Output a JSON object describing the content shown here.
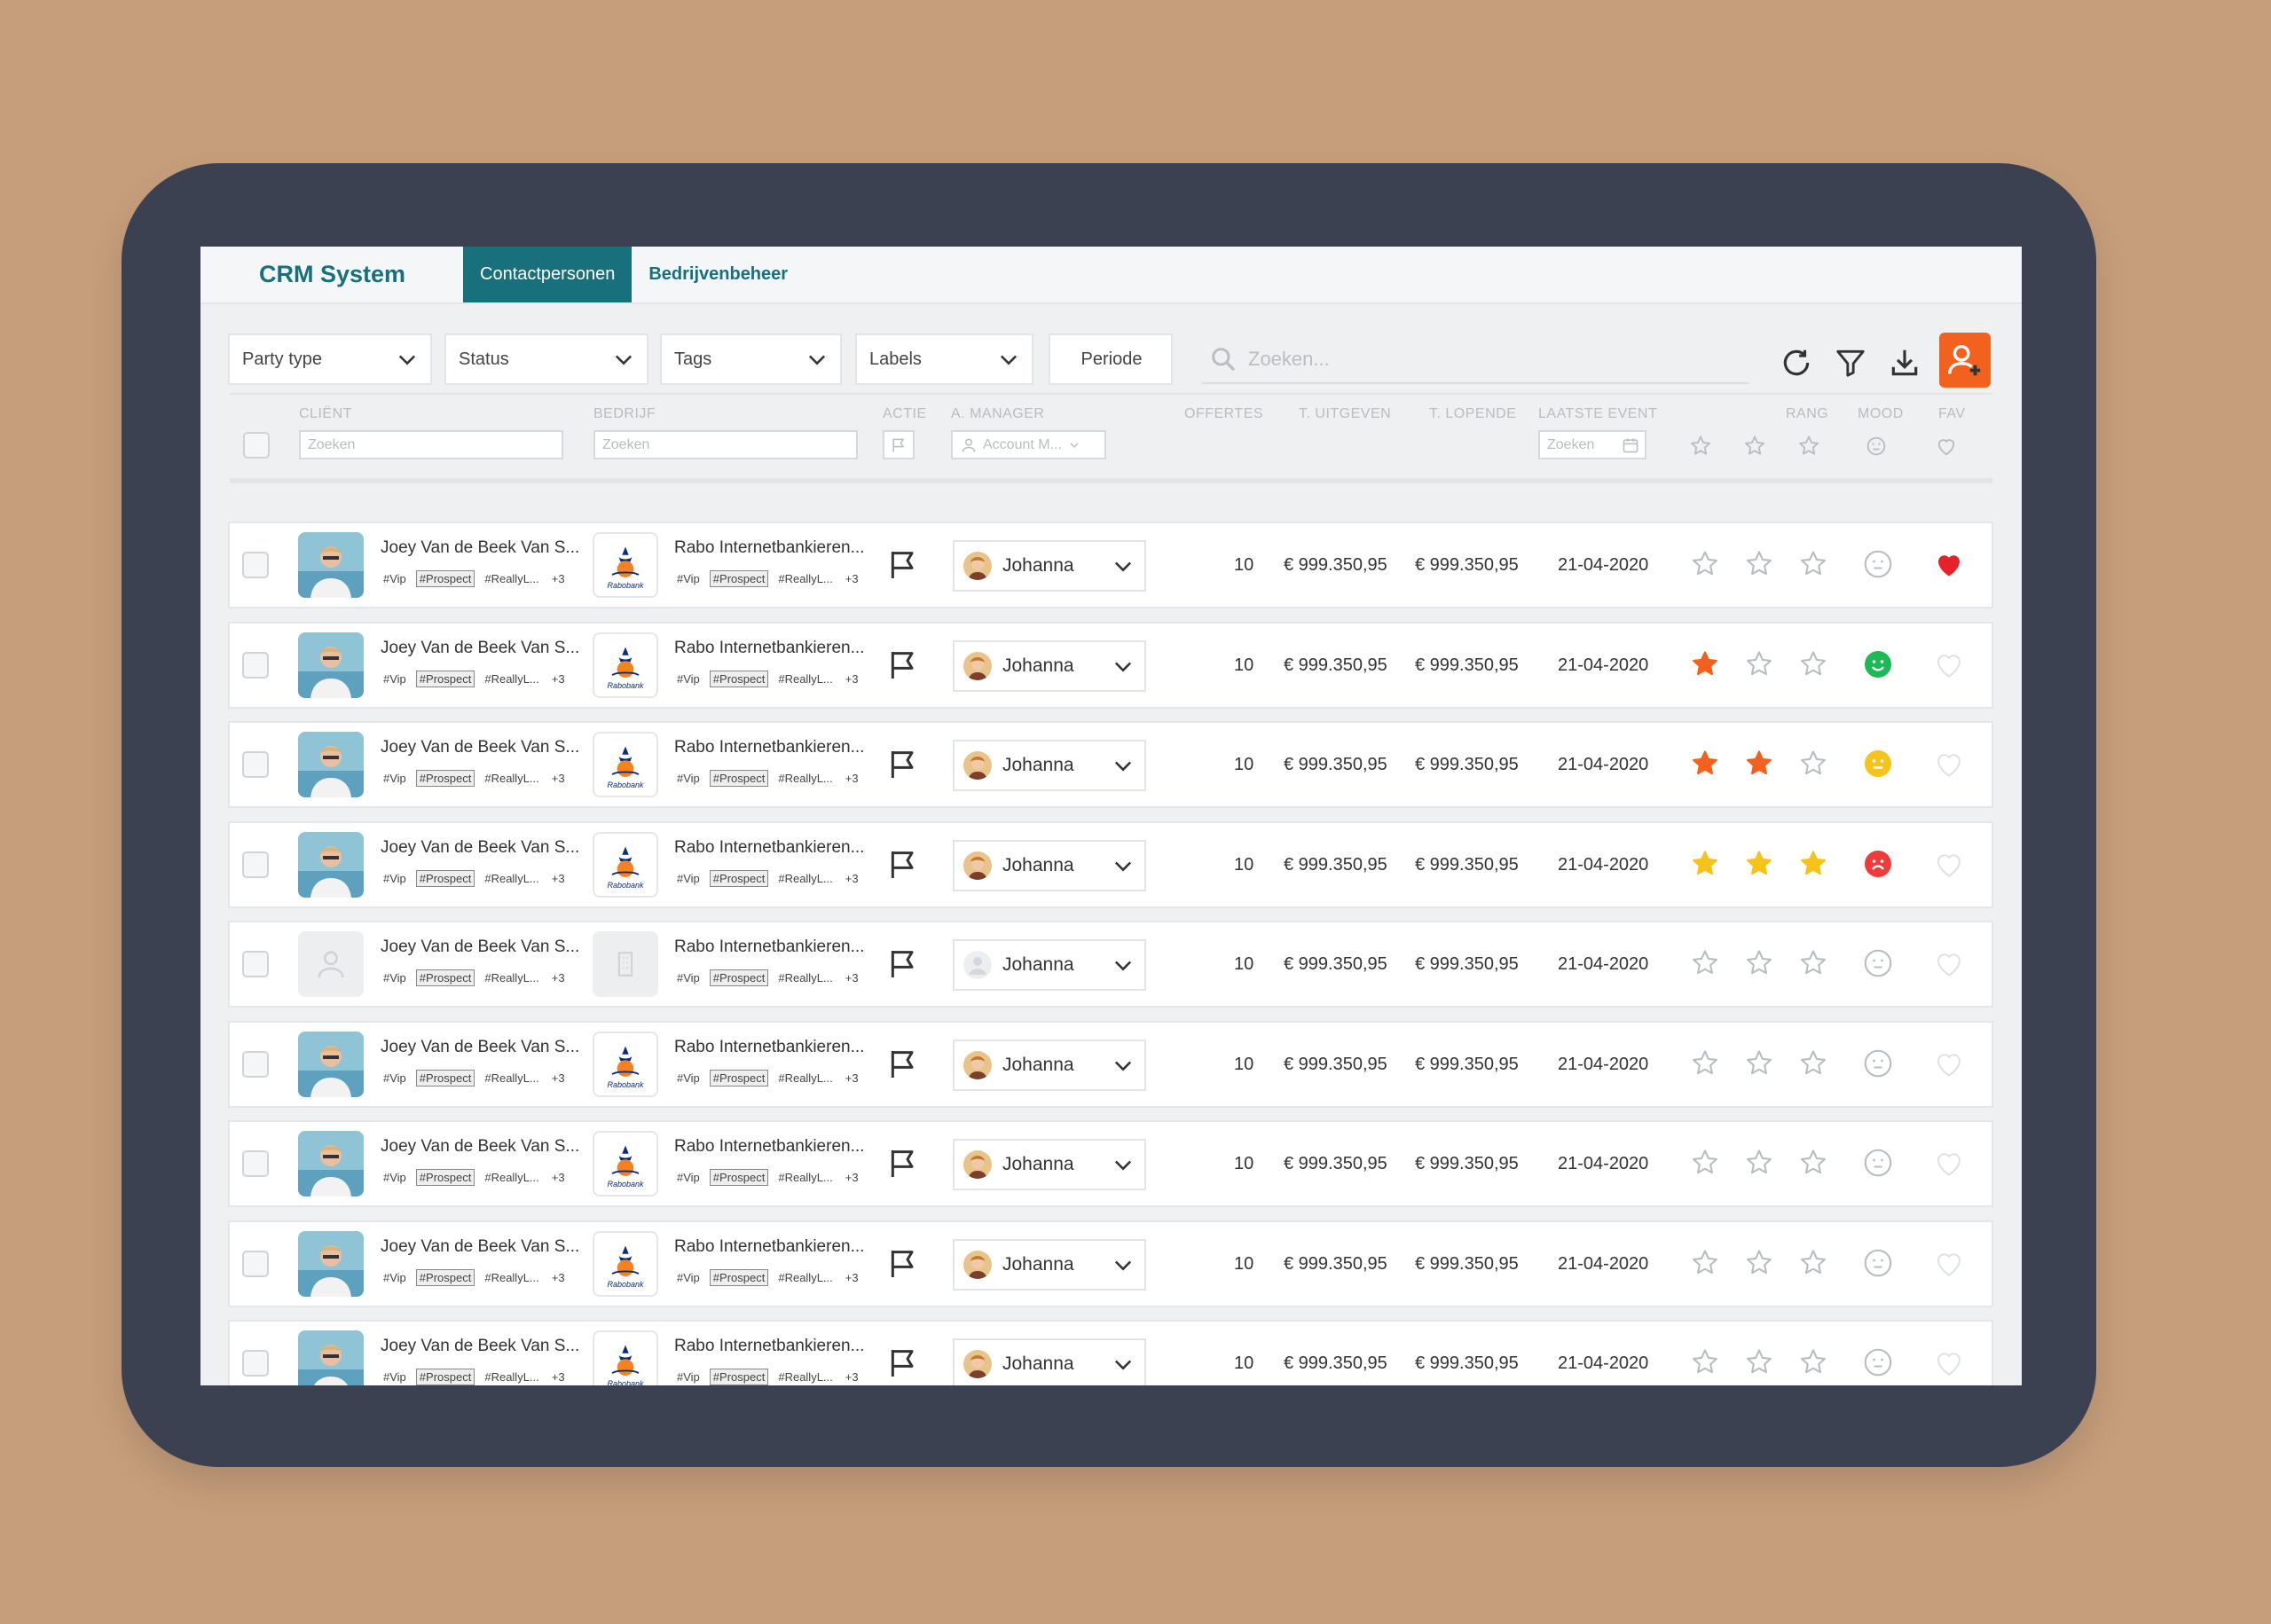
{
  "app": {
    "title": "CRM System"
  },
  "tabs": [
    {
      "label": "Contactpersonen",
      "active": true
    },
    {
      "label": "Bedrijvenbeheer",
      "active": false
    }
  ],
  "filters": {
    "party_type": "Party type",
    "status": "Status",
    "tags": "Tags",
    "labels": "Labels",
    "periode": "Periode",
    "search_placeholder": "Zoeken..."
  },
  "columns": {
    "client": "CLIËNT",
    "bedrijf": "BEDRIJF",
    "actie": "ACTIE",
    "manager": "A. MANAGER",
    "offertes": "OFFERTES",
    "uitgeven": "T. UITGEVEN",
    "lopende": "T. LOPENDE",
    "event": "LAATSTE EVENT",
    "rang": "RANG",
    "mood": "MOOD",
    "fav": "FAV"
  },
  "column_filters": {
    "client_placeholder": "Zoeken",
    "bedrijf_placeholder": "Zoeken",
    "manager_placeholder": "Account M...",
    "event_placeholder": "Zoeken"
  },
  "colors": {
    "teal": "#17707c",
    "orange": "#f2621e",
    "yellow": "#f6c31b",
    "green": "#1db954",
    "red": "#ee3b3b",
    "heart_red": "#e8202a"
  },
  "rows": [
    {
      "name": "Joey Van de Beek Van S...",
      "tags": [
        "#Vip",
        "#Prospect",
        "#ReallyL...",
        "+3"
      ],
      "company": "Rabo Internetbankieren...",
      "company_tags": [
        "#Vip",
        "#Prospect",
        "#ReallyL...",
        "+3"
      ],
      "logo_text": "Rabobank",
      "manager": "Johanna",
      "offertes": "10",
      "uitgeven": "€ 999.350,95",
      "lopende": "€ 999.350,95",
      "event": "21-04-2020",
      "rank": 0,
      "rank_color": "none",
      "mood": "neutral-outline",
      "fav": true,
      "placeholder": false
    },
    {
      "name": "Joey Van de Beek Van S...",
      "tags": [
        "#Vip",
        "#Prospect",
        "#ReallyL...",
        "+3"
      ],
      "company": "Rabo Internetbankieren...",
      "company_tags": [
        "#Vip",
        "#Prospect",
        "#ReallyL...",
        "+3"
      ],
      "logo_text": "Rabobank",
      "manager": "Johanna",
      "offertes": "10",
      "uitgeven": "€ 999.350,95",
      "lopende": "€ 999.350,95",
      "event": "21-04-2020",
      "rank": 1,
      "rank_color": "orange",
      "mood": "happy",
      "fav": false,
      "placeholder": false
    },
    {
      "name": "Joey Van de Beek Van S...",
      "tags": [
        "#Vip",
        "#Prospect",
        "#ReallyL...",
        "+3"
      ],
      "company": "Rabo Internetbankieren...",
      "company_tags": [
        "#Vip",
        "#Prospect",
        "#ReallyL...",
        "+3"
      ],
      "logo_text": "Rabobank",
      "manager": "Johanna",
      "offertes": "10",
      "uitgeven": "€ 999.350,95",
      "lopende": "€ 999.350,95",
      "event": "21-04-2020",
      "rank": 2,
      "rank_color": "orange",
      "mood": "neutral",
      "fav": false,
      "placeholder": false
    },
    {
      "name": "Joey Van de Beek Van S...",
      "tags": [
        "#Vip",
        "#Prospect",
        "#ReallyL...",
        "+3"
      ],
      "company": "Rabo Internetbankieren...",
      "company_tags": [
        "#Vip",
        "#Prospect",
        "#ReallyL...",
        "+3"
      ],
      "logo_text": "Rabobank",
      "manager": "Johanna",
      "offertes": "10",
      "uitgeven": "€ 999.350,95",
      "lopende": "€ 999.350,95",
      "event": "21-04-2020",
      "rank": 3,
      "rank_color": "yellow",
      "mood": "sad",
      "fav": false,
      "placeholder": false
    },
    {
      "name": "Joey Van de Beek Van S...",
      "tags": [
        "#Vip",
        "#Prospect",
        "#ReallyL...",
        "+3"
      ],
      "company": "Rabo Internetbankieren...",
      "company_tags": [
        "#Vip",
        "#Prospect",
        "#ReallyL...",
        "+3"
      ],
      "logo_text": "",
      "manager": "Johanna",
      "offertes": "10",
      "uitgeven": "€ 999.350,95",
      "lopende": "€ 999.350,95",
      "event": "21-04-2020",
      "rank": 0,
      "rank_color": "none",
      "mood": "neutral-outline",
      "fav": false,
      "placeholder": true
    },
    {
      "name": "Joey Van de Beek Van S...",
      "tags": [
        "#Vip",
        "#Prospect",
        "#ReallyL...",
        "+3"
      ],
      "company": "Rabo Internetbankieren...",
      "company_tags": [
        "#Vip",
        "#Prospect",
        "#ReallyL...",
        "+3"
      ],
      "logo_text": "Rabobank",
      "manager": "Johanna",
      "offertes": "10",
      "uitgeven": "€ 999.350,95",
      "lopende": "€ 999.350,95",
      "event": "21-04-2020",
      "rank": 0,
      "rank_color": "none",
      "mood": "neutral-outline",
      "fav": false,
      "placeholder": false
    },
    {
      "name": "Joey Van de Beek Van S...",
      "tags": [
        "#Vip",
        "#Prospect",
        "#ReallyL...",
        "+3"
      ],
      "company": "Rabo Internetbankieren...",
      "company_tags": [
        "#Vip",
        "#Prospect",
        "#ReallyL...",
        "+3"
      ],
      "logo_text": "Rabobank",
      "manager": "Johanna",
      "offertes": "10",
      "uitgeven": "€ 999.350,95",
      "lopende": "€ 999.350,95",
      "event": "21-04-2020",
      "rank": 0,
      "rank_color": "none",
      "mood": "neutral-outline",
      "fav": false,
      "placeholder": false
    },
    {
      "name": "Joey Van de Beek Van S...",
      "tags": [
        "#Vip",
        "#Prospect",
        "#ReallyL...",
        "+3"
      ],
      "company": "Rabo Internetbankieren...",
      "company_tags": [
        "#Vip",
        "#Prospect",
        "#ReallyL...",
        "+3"
      ],
      "logo_text": "Rabobank",
      "manager": "Johanna",
      "offertes": "10",
      "uitgeven": "€ 999.350,95",
      "lopende": "€ 999.350,95",
      "event": "21-04-2020",
      "rank": 0,
      "rank_color": "none",
      "mood": "neutral-outline",
      "fav": false,
      "placeholder": false
    },
    {
      "name": "Joey Van de Beek Van S...",
      "tags": [
        "#Vip",
        "#Prospect",
        "#ReallyL...",
        "+3"
      ],
      "company": "Rabo Internetbankieren...",
      "company_tags": [
        "#Vip",
        "#Prospect",
        "#ReallyL...",
        "+3"
      ],
      "logo_text": "Rabobank",
      "manager": "Johanna",
      "offertes": "10",
      "uitgeven": "€ 999.350,95",
      "lopende": "€ 999.350,95",
      "event": "21-04-2020",
      "rank": 0,
      "rank_color": "none",
      "mood": "neutral-outline",
      "fav": false,
      "placeholder": false
    }
  ]
}
